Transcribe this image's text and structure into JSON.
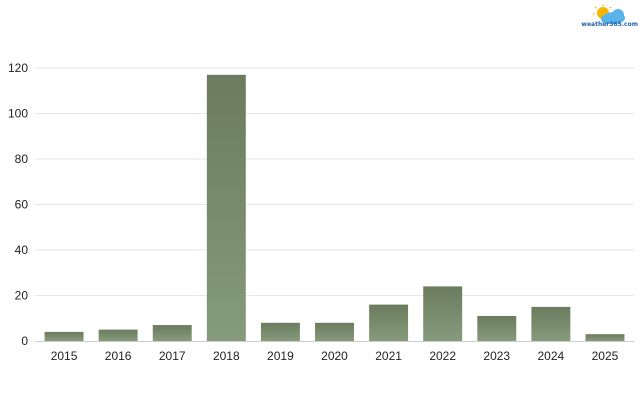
{
  "brand": {
    "logo_text": "weather365.com",
    "logo_colors": [
      "#f7b500",
      "#5ab4ea"
    ]
  },
  "chart_data": {
    "type": "bar",
    "title": "",
    "xlabel": "",
    "ylabel": "",
    "categories": [
      "2015",
      "2016",
      "2017",
      "2018",
      "2019",
      "2020",
      "2021",
      "2022",
      "2023",
      "2024",
      "2025"
    ],
    "values": [
      4,
      5,
      7,
      117,
      8,
      8,
      16,
      24,
      11,
      15,
      3
    ],
    "ylim": [
      0,
      120
    ],
    "yticks": [
      0,
      20,
      40,
      60,
      80,
      100,
      120
    ],
    "grid": true,
    "legend": "none",
    "bar_color_top": "#6b7c5e",
    "bar_color_bottom": "#869a7c"
  }
}
